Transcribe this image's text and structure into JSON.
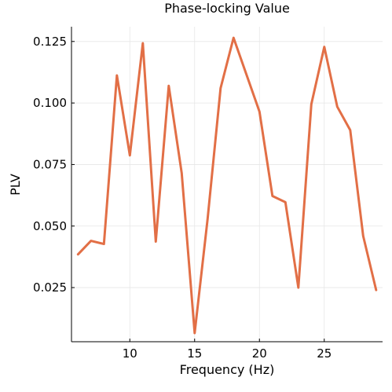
{
  "chart_data": {
    "type": "line",
    "title": "Phase-locking Value",
    "xlabel": "Frequency (Hz)",
    "ylabel": "PLV",
    "xlim": [
      5.5,
      29.5
    ],
    "ylim": [
      0.003,
      0.131
    ],
    "xticks": [
      10,
      15,
      20,
      25
    ],
    "yticks": [
      0.025,
      0.05,
      0.075,
      0.1,
      0.125
    ],
    "xtick_labels": [
      "10",
      "15",
      "20",
      "25"
    ],
    "ytick_labels": [
      "0.025",
      "0.050",
      "0.075",
      "0.100",
      "0.125"
    ],
    "grid": true,
    "legend": "none",
    "series": [
      {
        "color": "#e26f46",
        "x": [
          6,
          7,
          8,
          9,
          10,
          11,
          12,
          13,
          14,
          15,
          16,
          17,
          18,
          19,
          20,
          21,
          22,
          23,
          24,
          25,
          26,
          27,
          28,
          29
        ],
        "y": [
          0.0385,
          0.044,
          0.0427,
          0.1112,
          0.0787,
          0.1243,
          0.0437,
          0.107,
          0.0715,
          0.0065,
          0.053,
          0.106,
          0.1265,
          0.1115,
          0.0965,
          0.0622,
          0.0597,
          0.025,
          0.0995,
          0.1228,
          0.0985,
          0.089,
          0.046,
          0.024
        ]
      }
    ]
  }
}
